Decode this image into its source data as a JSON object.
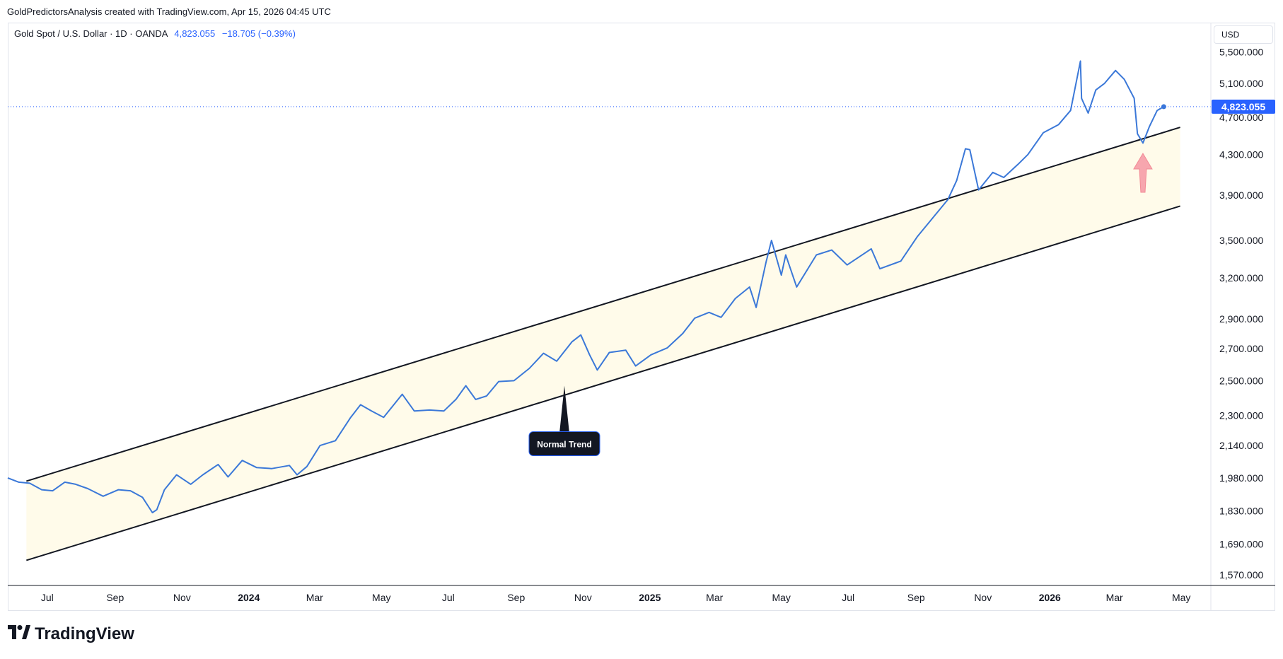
{
  "attribution": "GoldPredictorsAnalysis created with TradingView.com, Apr 15, 2026 04:45 UTC",
  "legend": {
    "symbol": "Gold Spot / U.S. Dollar · 1D · OANDA",
    "price": "4,823.055",
    "change": "−18.705 (−0.39%)"
  },
  "currency_label": "USD",
  "last_price_label": "4,823.055",
  "annotation_label": "Normal Trend",
  "branding": "TradingView",
  "colors": {
    "line": "#3b78d8",
    "channel_fill": "#fffbea",
    "channel_line": "#131722",
    "price_tag": "#2962ff",
    "arrow": "#f7a6ae",
    "annotation_bg": "#131722"
  },
  "icons": [
    "tradingview-logo-icon",
    "up-arrow-icon"
  ],
  "chart_data": {
    "type": "line",
    "y_scale": "log",
    "ylim": [
      1530,
      5900
    ],
    "y_ticks": [
      5500,
      5100,
      4700,
      4300,
      3900,
      3500,
      3200,
      2900,
      2700,
      2500,
      2300,
      2140,
      1980,
      1830,
      1690,
      1570
    ],
    "y_tick_labels": [
      "5,500.000",
      "5,100.000",
      "4,700.000",
      "4,300.000",
      "3,900.000",
      "3,500.000",
      "3,200.000",
      "2,900.000",
      "2,700.000",
      "2,500.000",
      "2,300.000",
      "2,140.000",
      "1,980.000",
      "1,830.000",
      "1,690.000",
      "1,570.000"
    ],
    "x_range": [
      "2023-05-26",
      "2026-05-28"
    ],
    "x_ticks": [
      {
        "date": "2023-07-01",
        "label": "Jul",
        "bold": false
      },
      {
        "date": "2023-09-01",
        "label": "Sep",
        "bold": false
      },
      {
        "date": "2023-11-01",
        "label": "Nov",
        "bold": false
      },
      {
        "date": "2024-01-01",
        "label": "2024",
        "bold": true
      },
      {
        "date": "2024-03-01",
        "label": "Mar",
        "bold": false
      },
      {
        "date": "2024-05-01",
        "label": "May",
        "bold": false
      },
      {
        "date": "2024-07-01",
        "label": "Jul",
        "bold": false
      },
      {
        "date": "2024-09-01",
        "label": "Sep",
        "bold": false
      },
      {
        "date": "2024-11-01",
        "label": "Nov",
        "bold": false
      },
      {
        "date": "2025-01-01",
        "label": "2025",
        "bold": true
      },
      {
        "date": "2025-03-01",
        "label": "Mar",
        "bold": false
      },
      {
        "date": "2025-05-01",
        "label": "May",
        "bold": false
      },
      {
        "date": "2025-07-01",
        "label": "Jul",
        "bold": false
      },
      {
        "date": "2025-09-01",
        "label": "Sep",
        "bold": false
      },
      {
        "date": "2025-11-01",
        "label": "Nov",
        "bold": false
      },
      {
        "date": "2026-01-01",
        "label": "2026",
        "bold": true
      },
      {
        "date": "2026-03-01",
        "label": "Mar",
        "bold": false
      },
      {
        "date": "2026-05-01",
        "label": "May",
        "bold": false
      }
    ],
    "series": [
      {
        "points": [
          [
            "2023-05-26",
            1980
          ],
          [
            "2023-06-05",
            1960
          ],
          [
            "2023-06-15",
            1955
          ],
          [
            "2023-06-26",
            1925
          ],
          [
            "2023-07-06",
            1920
          ],
          [
            "2023-07-17",
            1960
          ],
          [
            "2023-07-27",
            1950
          ],
          [
            "2023-08-07",
            1930
          ],
          [
            "2023-08-21",
            1895
          ],
          [
            "2023-09-04",
            1925
          ],
          [
            "2023-09-15",
            1920
          ],
          [
            "2023-09-26",
            1890
          ],
          [
            "2023-10-05",
            1822
          ],
          [
            "2023-10-09",
            1835
          ],
          [
            "2023-10-16",
            1925
          ],
          [
            "2023-10-27",
            1995
          ],
          [
            "2023-11-09",
            1950
          ],
          [
            "2023-11-20",
            1995
          ],
          [
            "2023-12-04",
            2045
          ],
          [
            "2023-12-13",
            1985
          ],
          [
            "2023-12-26",
            2065
          ],
          [
            "2024-01-08",
            2030
          ],
          [
            "2024-01-22",
            2025
          ],
          [
            "2024-02-07",
            2040
          ],
          [
            "2024-02-14",
            1995
          ],
          [
            "2024-02-23",
            2035
          ],
          [
            "2024-03-06",
            2140
          ],
          [
            "2024-03-20",
            2165
          ],
          [
            "2024-04-03",
            2290
          ],
          [
            "2024-04-12",
            2360
          ],
          [
            "2024-04-22",
            2325
          ],
          [
            "2024-05-03",
            2290
          ],
          [
            "2024-05-20",
            2420
          ],
          [
            "2024-05-31",
            2325
          ],
          [
            "2024-06-14",
            2330
          ],
          [
            "2024-06-27",
            2325
          ],
          [
            "2024-07-08",
            2390
          ],
          [
            "2024-07-17",
            2470
          ],
          [
            "2024-07-26",
            2390
          ],
          [
            "2024-08-05",
            2410
          ],
          [
            "2024-08-16",
            2495
          ],
          [
            "2024-08-30",
            2500
          ],
          [
            "2024-09-13",
            2575
          ],
          [
            "2024-09-26",
            2670
          ],
          [
            "2024-10-08",
            2620
          ],
          [
            "2024-10-22",
            2745
          ],
          [
            "2024-10-30",
            2790
          ],
          [
            "2024-11-07",
            2660
          ],
          [
            "2024-11-14",
            2565
          ],
          [
            "2024-11-25",
            2675
          ],
          [
            "2024-12-10",
            2690
          ],
          [
            "2024-12-19",
            2590
          ],
          [
            "2025-01-02",
            2660
          ],
          [
            "2025-01-17",
            2705
          ],
          [
            "2025-01-31",
            2800
          ],
          [
            "2025-02-11",
            2905
          ],
          [
            "2025-02-24",
            2945
          ],
          [
            "2025-03-07",
            2910
          ],
          [
            "2025-03-20",
            3045
          ],
          [
            "2025-04-02",
            3130
          ],
          [
            "2025-04-08",
            2980
          ],
          [
            "2025-04-17",
            3320
          ],
          [
            "2025-04-22",
            3500
          ],
          [
            "2025-05-01",
            3220
          ],
          [
            "2025-05-05",
            3380
          ],
          [
            "2025-05-15",
            3130
          ],
          [
            "2025-06-02",
            3380
          ],
          [
            "2025-06-16",
            3420
          ],
          [
            "2025-06-30",
            3300
          ],
          [
            "2025-07-22",
            3430
          ],
          [
            "2025-07-30",
            3270
          ],
          [
            "2025-08-18",
            3330
          ],
          [
            "2025-09-02",
            3530
          ],
          [
            "2025-09-15",
            3680
          ],
          [
            "2025-09-30",
            3860
          ],
          [
            "2025-10-08",
            4040
          ],
          [
            "2025-10-16",
            4360
          ],
          [
            "2025-10-20",
            4350
          ],
          [
            "2025-10-28",
            3950
          ],
          [
            "2025-11-10",
            4120
          ],
          [
            "2025-11-20",
            4070
          ],
          [
            "2025-12-03",
            4200
          ],
          [
            "2025-12-12",
            4300
          ],
          [
            "2025-12-26",
            4530
          ],
          [
            "2026-01-09",
            4620
          ],
          [
            "2026-01-20",
            4780
          ],
          [
            "2026-01-29",
            5380
          ],
          [
            "2026-01-30",
            4920
          ],
          [
            "2026-02-05",
            4750
          ],
          [
            "2026-02-12",
            5020
          ],
          [
            "2026-02-20",
            5100
          ],
          [
            "2026-03-02",
            5260
          ],
          [
            "2026-03-10",
            5150
          ],
          [
            "2026-03-19",
            4920
          ],
          [
            "2026-03-22",
            4520
          ],
          [
            "2026-03-27",
            4420
          ],
          [
            "2026-04-02",
            4600
          ],
          [
            "2026-04-09",
            4780
          ],
          [
            "2026-04-15",
            4823
          ]
        ]
      }
    ],
    "channel": {
      "upper": [
        [
          "2023-06-12",
          1965
        ],
        [
          "2026-04-30",
          4590
        ]
      ],
      "lower": [
        [
          "2023-06-12",
          1625
        ],
        [
          "2026-04-30",
          3800
        ]
      ]
    },
    "annotations": [
      {
        "text": "Normal Trend",
        "target": [
          "2024-10-15",
          2470
        ]
      }
    ],
    "grid": false,
    "legend": "top-left"
  }
}
